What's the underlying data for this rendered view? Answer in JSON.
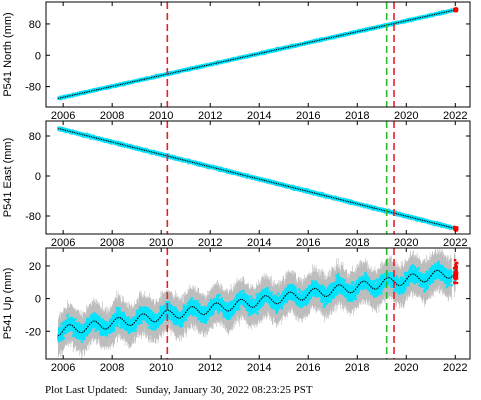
{
  "footer": {
    "label": "Plot Last Updated:",
    "timestamp": "Sunday, January 30, 2022 08:23:25 PST"
  },
  "style": {
    "error_color": "#bdbdbd",
    "point_color": "#00e5ff",
    "model_color": "#000000",
    "recent_color": "#ff0000",
    "vline_red": "#e8202a",
    "vline_green": "#2db82d"
  },
  "chart_data": [
    {
      "type": "scatter",
      "ylabel": "P541 North (mm)",
      "xlim": [
        2005.3,
        2022.6
      ],
      "ylim": [
        -132,
        136
      ],
      "xticks": [
        2006,
        2008,
        2010,
        2012,
        2014,
        2016,
        2018,
        2020,
        2022
      ],
      "yticks": [
        80,
        0,
        -80
      ],
      "trend": {
        "start": [
          2005.8,
          -110
        ],
        "end": [
          2022.0,
          116
        ]
      },
      "noise": 2.5,
      "error_bar": 3,
      "vlines": [
        {
          "x": 2010.25,
          "color": "red"
        },
        {
          "x": 2019.2,
          "color": "green"
        },
        {
          "x": 2019.5,
          "color": "red"
        }
      ],
      "grid": false
    },
    {
      "type": "scatter",
      "ylabel": "P541 East (mm)",
      "xlim": [
        2005.3,
        2022.6
      ],
      "ylim": [
        -116,
        110
      ],
      "xticks": [
        2006,
        2008,
        2010,
        2012,
        2014,
        2016,
        2018,
        2020,
        2022
      ],
      "yticks": [
        80,
        0,
        -80
      ],
      "trend": {
        "start": [
          2005.8,
          95
        ],
        "end": [
          2022.0,
          -105
        ]
      },
      "noise": 2.5,
      "error_bar": 3,
      "vlines": [
        {
          "x": 2010.25,
          "color": "red"
        },
        {
          "x": 2019.2,
          "color": "green"
        },
        {
          "x": 2019.5,
          "color": "red"
        }
      ],
      "grid": false
    },
    {
      "type": "scatter",
      "ylabel": "P541 Up (mm)",
      "xlim": [
        2005.3,
        2022.6
      ],
      "ylim": [
        -37,
        31
      ],
      "xticks": [
        2006,
        2008,
        2010,
        2012,
        2014,
        2016,
        2018,
        2020,
        2022
      ],
      "yticks": [
        20,
        0,
        -20
      ],
      "trend": {
        "start": [
          2005.8,
          -20
        ],
        "end": [
          2022.0,
          16
        ]
      },
      "seasonal_amplitude": 3,
      "noise": 4.5,
      "error_bar": 8,
      "vlines": [
        {
          "x": 2010.25,
          "color": "red"
        },
        {
          "x": 2019.2,
          "color": "green"
        },
        {
          "x": 2019.5,
          "color": "red"
        }
      ],
      "grid": false
    }
  ]
}
